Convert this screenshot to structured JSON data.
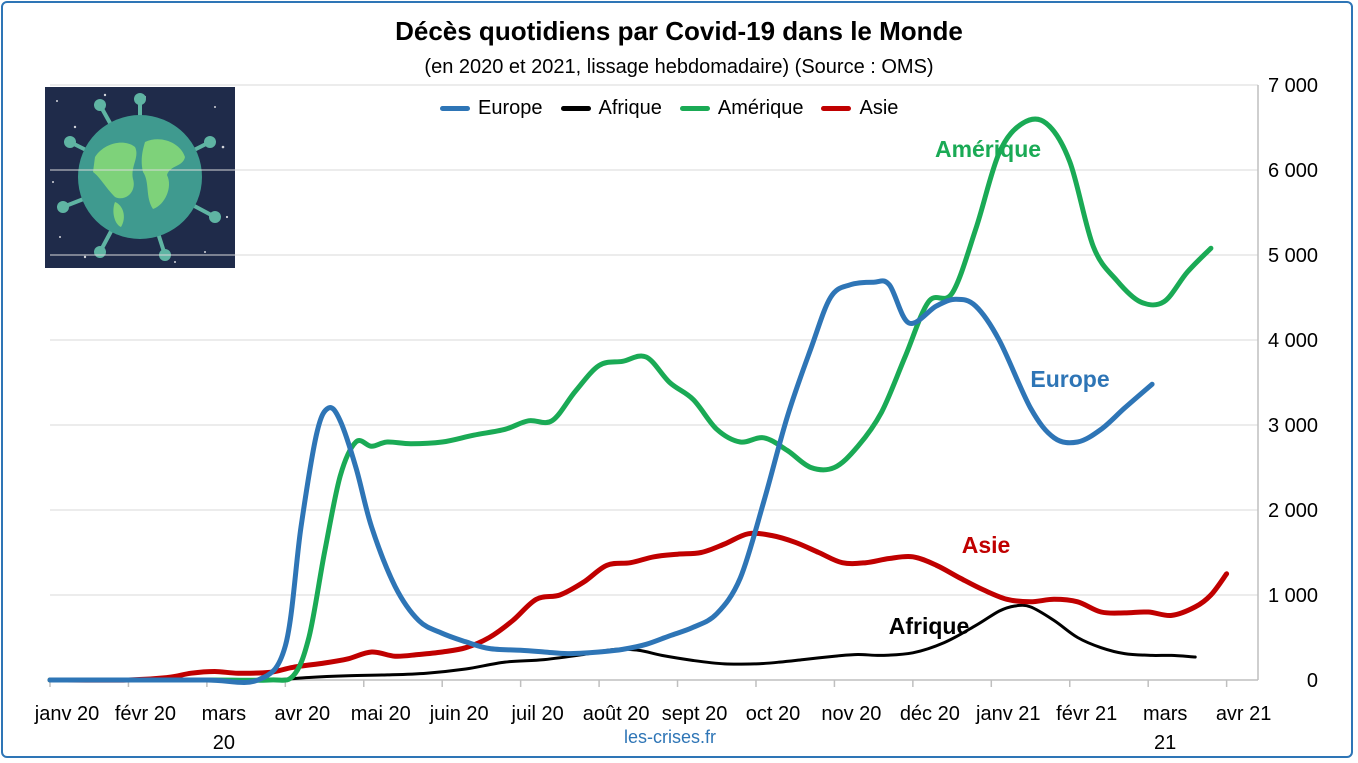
{
  "source_label": "les-crises.fr",
  "chart_data": {
    "type": "line",
    "title": "Décès quotidiens par Covid-19 dans le Monde",
    "subtitle": "(en 2020 et 2021, lissage hebdomadaire) (Source : OMS)",
    "ylim": [
      0,
      7000
    ],
    "y_ticks": [
      "0",
      "1 000",
      "2 000",
      "3 000",
      "4 000",
      "5 000",
      "6 000",
      "7 000"
    ],
    "y_tick_values": [
      0,
      1000,
      2000,
      3000,
      4000,
      5000,
      6000,
      7000
    ],
    "x_tick_labels": [
      [
        "janv 20"
      ],
      [
        "févr 20"
      ],
      [
        "mars",
        "20"
      ],
      [
        "avr 20"
      ],
      [
        "mai 20"
      ],
      [
        "juin 20"
      ],
      [
        "juil 20"
      ],
      [
        "août 20"
      ],
      [
        "sept 20"
      ],
      [
        "oct 20"
      ],
      [
        "nov 20"
      ],
      [
        "déc 20"
      ],
      [
        "janv 21"
      ],
      [
        "févr 21"
      ],
      [
        "mars",
        "21"
      ],
      [
        "avr 21"
      ]
    ],
    "x_tick_months": [
      0,
      1,
      2,
      3,
      4,
      5,
      6,
      7,
      8,
      9,
      10,
      11,
      12,
      13,
      14,
      15
    ],
    "x_range_months": [
      0,
      15.4
    ],
    "grid": "horizontal",
    "legend_position": "top",
    "series": [
      {
        "name": "Europe",
        "color": "#2e75b6",
        "points": [
          [
            0,
            0
          ],
          [
            1,
            0
          ],
          [
            2,
            0
          ],
          [
            2.65,
            0
          ],
          [
            3,
            400
          ],
          [
            3.2,
            1800
          ],
          [
            3.4,
            2900
          ],
          [
            3.55,
            3200
          ],
          [
            3.7,
            3050
          ],
          [
            3.9,
            2500
          ],
          [
            4.1,
            1800
          ],
          [
            4.4,
            1100
          ],
          [
            4.7,
            700
          ],
          [
            5.0,
            550
          ],
          [
            5.3,
            450
          ],
          [
            5.6,
            370
          ],
          [
            6.0,
            350
          ],
          [
            6.3,
            330
          ],
          [
            6.6,
            310
          ],
          [
            7.0,
            330
          ],
          [
            7.3,
            360
          ],
          [
            7.6,
            420
          ],
          [
            7.9,
            520
          ],
          [
            8.2,
            620
          ],
          [
            8.5,
            780
          ],
          [
            8.8,
            1200
          ],
          [
            9.1,
            2100
          ],
          [
            9.4,
            3100
          ],
          [
            9.7,
            3900
          ],
          [
            9.95,
            4500
          ],
          [
            10.2,
            4650
          ],
          [
            10.5,
            4680
          ],
          [
            10.7,
            4650
          ],
          [
            10.95,
            4200
          ],
          [
            11.3,
            4400
          ],
          [
            11.55,
            4480
          ],
          [
            11.8,
            4400
          ],
          [
            12.1,
            4000
          ],
          [
            12.5,
            3200
          ],
          [
            12.8,
            2850
          ],
          [
            13.1,
            2800
          ],
          [
            13.4,
            2950
          ],
          [
            13.7,
            3200
          ],
          [
            14.05,
            3480
          ]
        ]
      },
      {
        "name": "Afrique",
        "color": "#000000",
        "points": [
          [
            0,
            0
          ],
          [
            2,
            0
          ],
          [
            2.8,
            0
          ],
          [
            3.3,
            30
          ],
          [
            3.8,
            50
          ],
          [
            4.3,
            60
          ],
          [
            4.8,
            80
          ],
          [
            5.3,
            130
          ],
          [
            5.8,
            210
          ],
          [
            6.3,
            240
          ],
          [
            6.8,
            300
          ],
          [
            7.2,
            360
          ],
          [
            7.5,
            350
          ],
          [
            7.8,
            290
          ],
          [
            8.2,
            230
          ],
          [
            8.6,
            190
          ],
          [
            9.0,
            190
          ],
          [
            9.3,
            210
          ],
          [
            9.6,
            240
          ],
          [
            10.0,
            280
          ],
          [
            10.3,
            300
          ],
          [
            10.6,
            290
          ],
          [
            11.0,
            320
          ],
          [
            11.4,
            440
          ],
          [
            11.8,
            640
          ],
          [
            12.1,
            810
          ],
          [
            12.3,
            870
          ],
          [
            12.5,
            860
          ],
          [
            12.8,
            700
          ],
          [
            13.1,
            500
          ],
          [
            13.4,
            380
          ],
          [
            13.7,
            310
          ],
          [
            14.05,
            290
          ],
          [
            14.3,
            290
          ],
          [
            14.6,
            270
          ]
        ]
      },
      {
        "name": "Amérique",
        "color": "#1aaa55",
        "points": [
          [
            0,
            0
          ],
          [
            2,
            0
          ],
          [
            2.8,
            0
          ],
          [
            3.1,
            50
          ],
          [
            3.3,
            500
          ],
          [
            3.5,
            1500
          ],
          [
            3.7,
            2400
          ],
          [
            3.9,
            2800
          ],
          [
            4.1,
            2750
          ],
          [
            4.3,
            2800
          ],
          [
            4.6,
            2780
          ],
          [
            5.0,
            2800
          ],
          [
            5.4,
            2880
          ],
          [
            5.8,
            2950
          ],
          [
            6.1,
            3050
          ],
          [
            6.4,
            3050
          ],
          [
            6.7,
            3400
          ],
          [
            7.0,
            3700
          ],
          [
            7.3,
            3750
          ],
          [
            7.6,
            3800
          ],
          [
            7.9,
            3500
          ],
          [
            8.2,
            3300
          ],
          [
            8.5,
            2950
          ],
          [
            8.8,
            2800
          ],
          [
            9.1,
            2850
          ],
          [
            9.4,
            2700
          ],
          [
            9.7,
            2500
          ],
          [
            10.0,
            2500
          ],
          [
            10.3,
            2750
          ],
          [
            10.6,
            3150
          ],
          [
            10.9,
            3800
          ],
          [
            11.2,
            4450
          ],
          [
            11.5,
            4550
          ],
          [
            11.8,
            5300
          ],
          [
            12.1,
            6200
          ],
          [
            12.4,
            6550
          ],
          [
            12.7,
            6550
          ],
          [
            13.0,
            6100
          ],
          [
            13.3,
            5100
          ],
          [
            13.6,
            4700
          ],
          [
            13.9,
            4450
          ],
          [
            14.2,
            4450
          ],
          [
            14.5,
            4800
          ],
          [
            14.8,
            5080
          ]
        ]
      },
      {
        "name": "Asie",
        "color": "#c00000",
        "points": [
          [
            0,
            0
          ],
          [
            1,
            0
          ],
          [
            1.5,
            30
          ],
          [
            1.8,
            80
          ],
          [
            2.1,
            100
          ],
          [
            2.4,
            80
          ],
          [
            2.8,
            90
          ],
          [
            3.1,
            150
          ],
          [
            3.5,
            200
          ],
          [
            3.8,
            250
          ],
          [
            4.1,
            330
          ],
          [
            4.4,
            280
          ],
          [
            4.7,
            300
          ],
          [
            5.0,
            330
          ],
          [
            5.3,
            380
          ],
          [
            5.6,
            500
          ],
          [
            5.9,
            700
          ],
          [
            6.2,
            950
          ],
          [
            6.5,
            1000
          ],
          [
            6.8,
            1150
          ],
          [
            7.1,
            1350
          ],
          [
            7.4,
            1380
          ],
          [
            7.7,
            1450
          ],
          [
            8.0,
            1480
          ],
          [
            8.3,
            1500
          ],
          [
            8.6,
            1600
          ],
          [
            8.9,
            1720
          ],
          [
            9.2,
            1700
          ],
          [
            9.5,
            1620
          ],
          [
            9.8,
            1500
          ],
          [
            10.1,
            1380
          ],
          [
            10.4,
            1380
          ],
          [
            10.7,
            1430
          ],
          [
            11.0,
            1450
          ],
          [
            11.3,
            1350
          ],
          [
            11.6,
            1200
          ],
          [
            11.9,
            1060
          ],
          [
            12.2,
            950
          ],
          [
            12.5,
            920
          ],
          [
            12.8,
            950
          ],
          [
            13.1,
            920
          ],
          [
            13.4,
            800
          ],
          [
            13.7,
            790
          ],
          [
            14.0,
            800
          ],
          [
            14.3,
            760
          ],
          [
            14.6,
            860
          ],
          [
            14.8,
            1000
          ],
          [
            15.0,
            1250
          ]
        ]
      }
    ],
    "annotations": [
      {
        "text": "Amérique",
        "series": "Amérique"
      },
      {
        "text": "Europe",
        "series": "Europe"
      },
      {
        "text": "Asie",
        "series": "Asie"
      },
      {
        "text": "Afrique",
        "series": "Afrique"
      }
    ]
  }
}
